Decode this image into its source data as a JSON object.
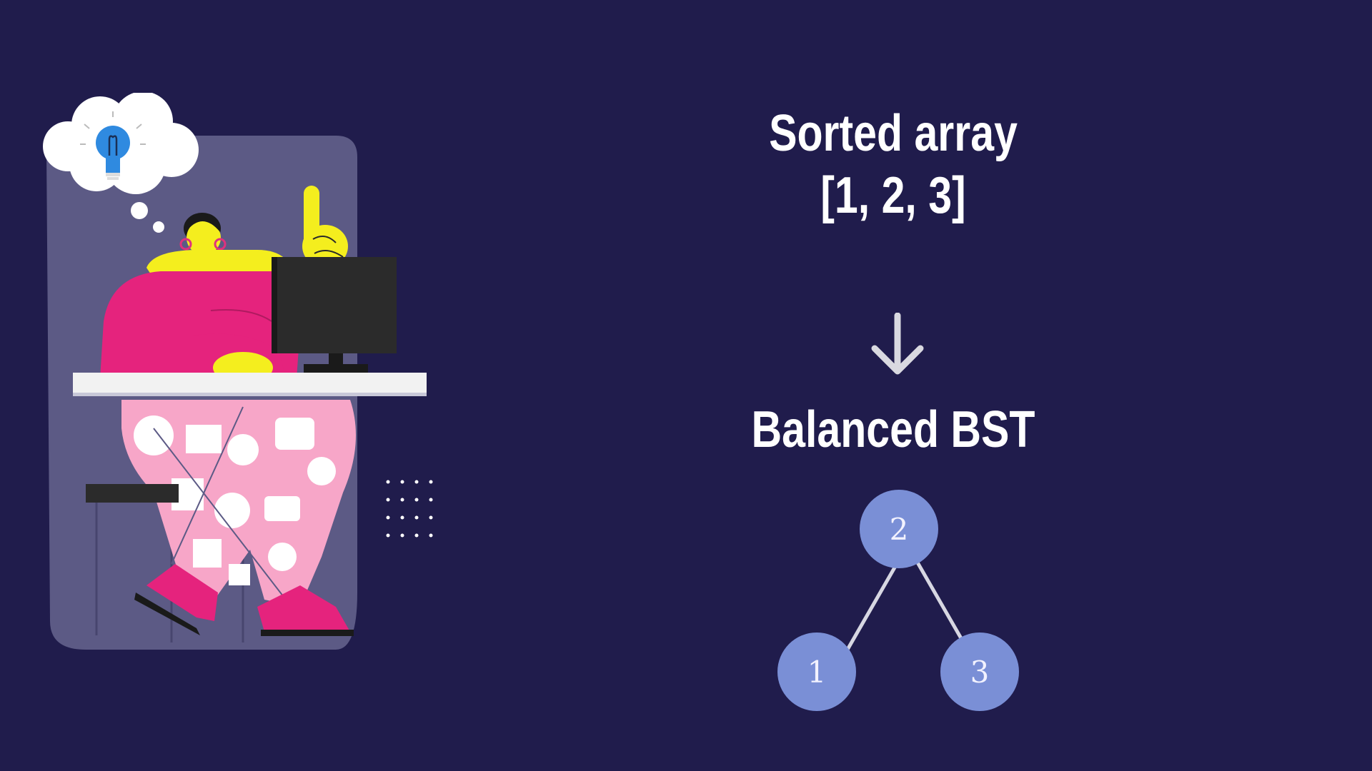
{
  "heading": {
    "line1": "Sorted array",
    "line2": "[1, 2, 3]"
  },
  "arrow_icon": "arrow-down-icon",
  "result_label": "Balanced BST",
  "tree": {
    "root": "2",
    "left": "1",
    "right": "3"
  },
  "colors": {
    "background": "#201c4c",
    "node_fill": "#7a8fd6",
    "edge": "#d7d7e2",
    "text": "#ffffff"
  }
}
